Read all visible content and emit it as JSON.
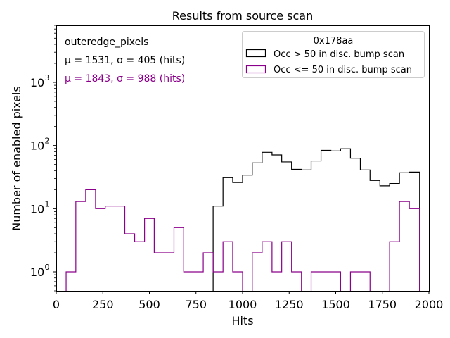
{
  "chart_data": {
    "type": "histogram",
    "title": "Results from source scan",
    "xlabel": "Hits",
    "ylabel": "Number of enabled pixels",
    "xlim": [
      0,
      2000
    ],
    "ylim": [
      0.5,
      8000
    ],
    "yscale": "log",
    "bin_width": 52.6,
    "x_ticks": [
      0,
      250,
      500,
      750,
      1000,
      1250,
      1500,
      1750,
      2000
    ],
    "x_tick_labels": [
      "0",
      "250",
      "500",
      "750",
      "1000",
      "1250",
      "1500",
      "1750",
      "2000"
    ],
    "y_ticks": [
      1,
      10,
      100,
      1000
    ],
    "y_tick_labels": [
      "10",
      "10",
      "10",
      "10"
    ],
    "y_tick_exponents": [
      "0",
      "1",
      "2",
      "3"
    ],
    "legend": {
      "title": "0x178aa",
      "position": "top-right"
    },
    "annotations": {
      "line1": "outeredge_pixels",
      "line2": "μ = 1531, σ = 405 (hits)",
      "line3": "μ = 1843, σ = 988 (hits)"
    },
    "series": [
      {
        "name": "Occ > 50 in disc. bump scan",
        "color": "#000000",
        "bin_edges": [
          842,
          895,
          947,
          1000,
          1052,
          1105,
          1158,
          1210,
          1263,
          1316,
          1368,
          1421,
          1474,
          1526,
          1579,
          1632,
          1684,
          1737,
          1789,
          1842,
          1895,
          1950
        ],
        "values": [
          11,
          31,
          26,
          34,
          53,
          78,
          71,
          55,
          42,
          41,
          57,
          84,
          82,
          89,
          63,
          41,
          28,
          23,
          25,
          37,
          38
        ]
      },
      {
        "name": "Occ <= 50 in disc. bump scan",
        "color": "#8b008b",
        "bin_edges": [
          53,
          105,
          158,
          211,
          263,
          316,
          368,
          421,
          474,
          526,
          579,
          632,
          684,
          737,
          789,
          842,
          895,
          947,
          1000,
          1052,
          1105,
          1158,
          1210,
          1263,
          1316,
          1368,
          1421,
          1474,
          1526,
          1579,
          1632,
          1684,
          1737,
          1789,
          1842,
          1895,
          1950
        ],
        "values": [
          1,
          13,
          20,
          10,
          11,
          11,
          4,
          3,
          7,
          2,
          2,
          5,
          1,
          1,
          2,
          1,
          3,
          1,
          0,
          2,
          3,
          1,
          3,
          1,
          0,
          1,
          1,
          1,
          0,
          1,
          1,
          0,
          0,
          3,
          13,
          10
        ]
      }
    ]
  }
}
